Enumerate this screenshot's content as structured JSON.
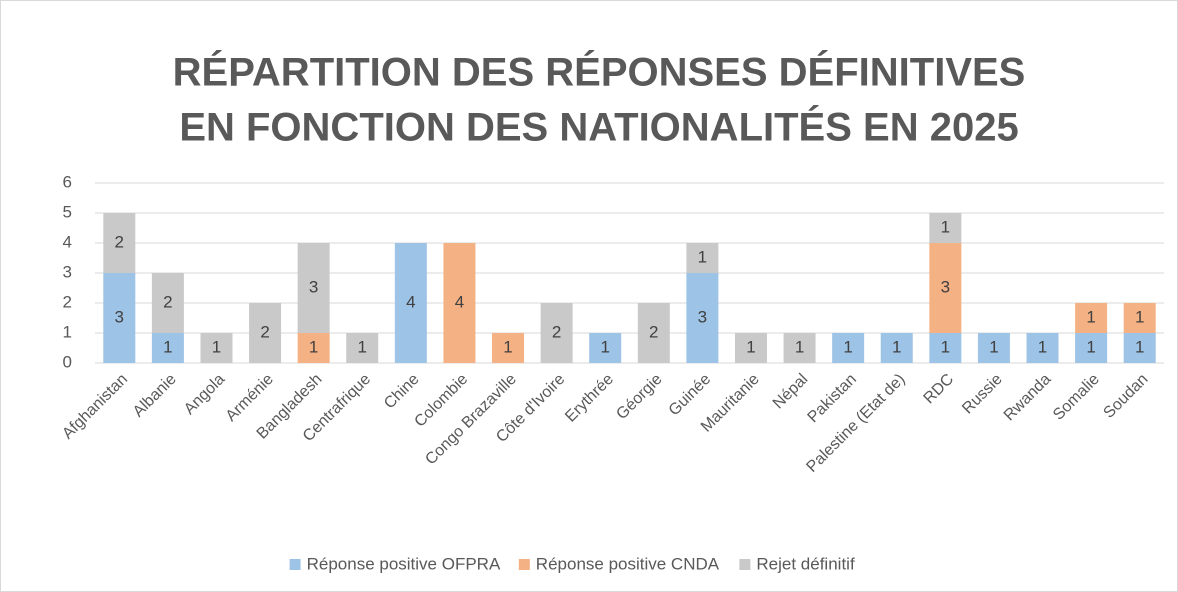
{
  "chart_data": {
    "type": "stacked_bar",
    "title": [
      "RÉPARTITION DES RÉPONSES DÉFINITIVES",
      "EN FONCTION DES NATIONALITÉS EN 2025"
    ],
    "categories": [
      "Afghanistan",
      "Albanie",
      "Angola",
      "Arménie",
      "Bangladesh",
      "Centrafrique",
      "Chine",
      "Colombie",
      "Congo Brazaville",
      "Côte d'Ivoire",
      "Erythrée",
      "Géorgie",
      "Guinée",
      "Mauritanie",
      "Népal",
      "Pakistan",
      "Palestine (Etat de)",
      "RDC",
      "Russie",
      "Rwanda",
      "Somalie",
      "Soudan"
    ],
    "series": [
      {
        "name": "Réponse positive OFPRA",
        "color": "#9dc3e6",
        "values": [
          3,
          1,
          null,
          null,
          null,
          null,
          4,
          null,
          null,
          null,
          1,
          null,
          3,
          null,
          null,
          1,
          1,
          1,
          1,
          1,
          1,
          1
        ]
      },
      {
        "name": "Réponse positive CNDA",
        "color": "#f4b183",
        "values": [
          null,
          null,
          null,
          null,
          1,
          null,
          null,
          4,
          1,
          null,
          null,
          null,
          null,
          null,
          null,
          null,
          null,
          3,
          null,
          null,
          1,
          1
        ]
      },
      {
        "name": "Rejet définitif",
        "color": "#c9c9c9",
        "values": [
          2,
          2,
          1,
          2,
          3,
          1,
          null,
          null,
          null,
          2,
          null,
          2,
          1,
          1,
          1,
          null,
          null,
          1,
          null,
          null,
          null,
          null
        ]
      }
    ],
    "ylim": [
      0,
      6
    ],
    "yticks": [
      0,
      1,
      2,
      3,
      4,
      5,
      6
    ],
    "grid": true,
    "legend": "bottom"
  }
}
